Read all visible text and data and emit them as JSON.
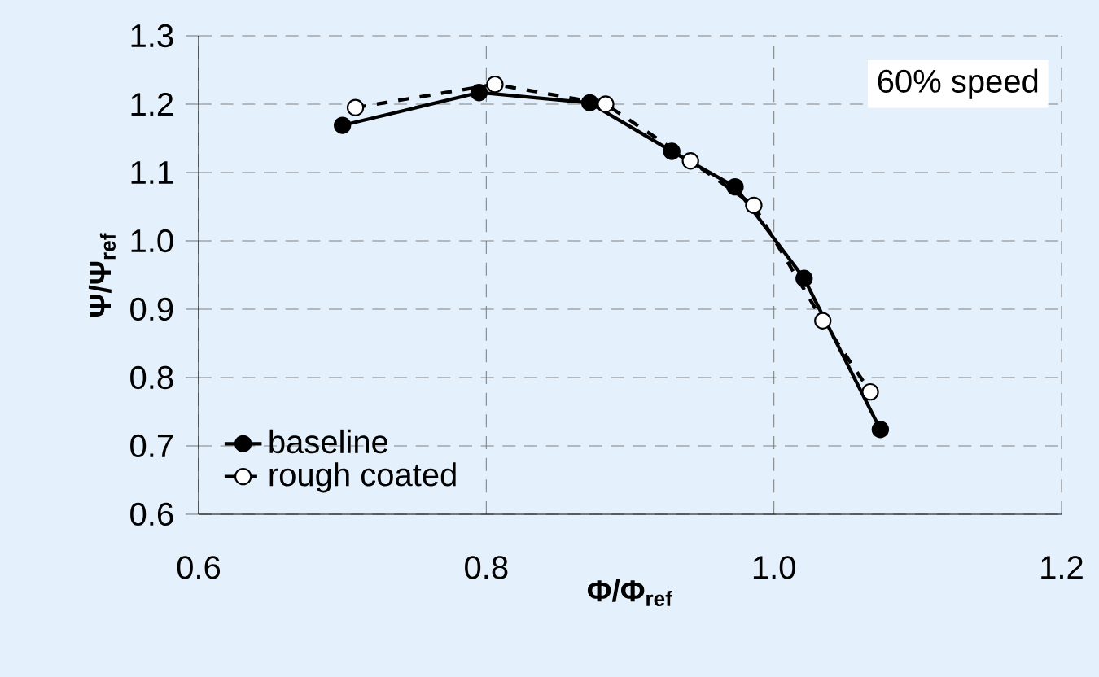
{
  "chart_data": {
    "type": "line",
    "xlabel": "Φ/Φ$_{ref}$",
    "ylabel": "Ψ/Ψ$_{ref}$",
    "annotations": [
      "60% speed"
    ],
    "series": [
      {
        "name": "baseline",
        "color": "#000000",
        "line_style": "solid",
        "x": [
          0.7,
          0.795,
          0.872,
          0.929,
          0.973,
          1.021,
          1.074
        ],
        "values": [
          1.169,
          1.217,
          1.202,
          1.131,
          1.079,
          0.945,
          0.724
        ]
      },
      {
        "name": "rough coated",
        "color": "#000000",
        "line_style": "dashed",
        "x": [
          0.709,
          0.806,
          0.883,
          0.942,
          0.986,
          1.034,
          1.067
        ],
        "values": [
          1.195,
          1.229,
          1.2,
          1.117,
          1.052,
          0.883,
          0.779
        ]
      }
    ],
    "marker": "circle",
    "xlim": [
      0.6,
      1.2
    ],
    "ylim": [
      0.6,
      1.3
    ],
    "xticks": [
      0.6,
      0.8,
      {
        "value": 1.0,
        "label": "1.0"
      },
      1.2
    ],
    "yticks": [
      0.6,
      0.7,
      0.8,
      0.9,
      {
        "value": 1.0,
        "label": "1.0"
      },
      1.1,
      1.2,
      1.3
    ],
    "grid": true,
    "legend": "bottom left"
  }
}
